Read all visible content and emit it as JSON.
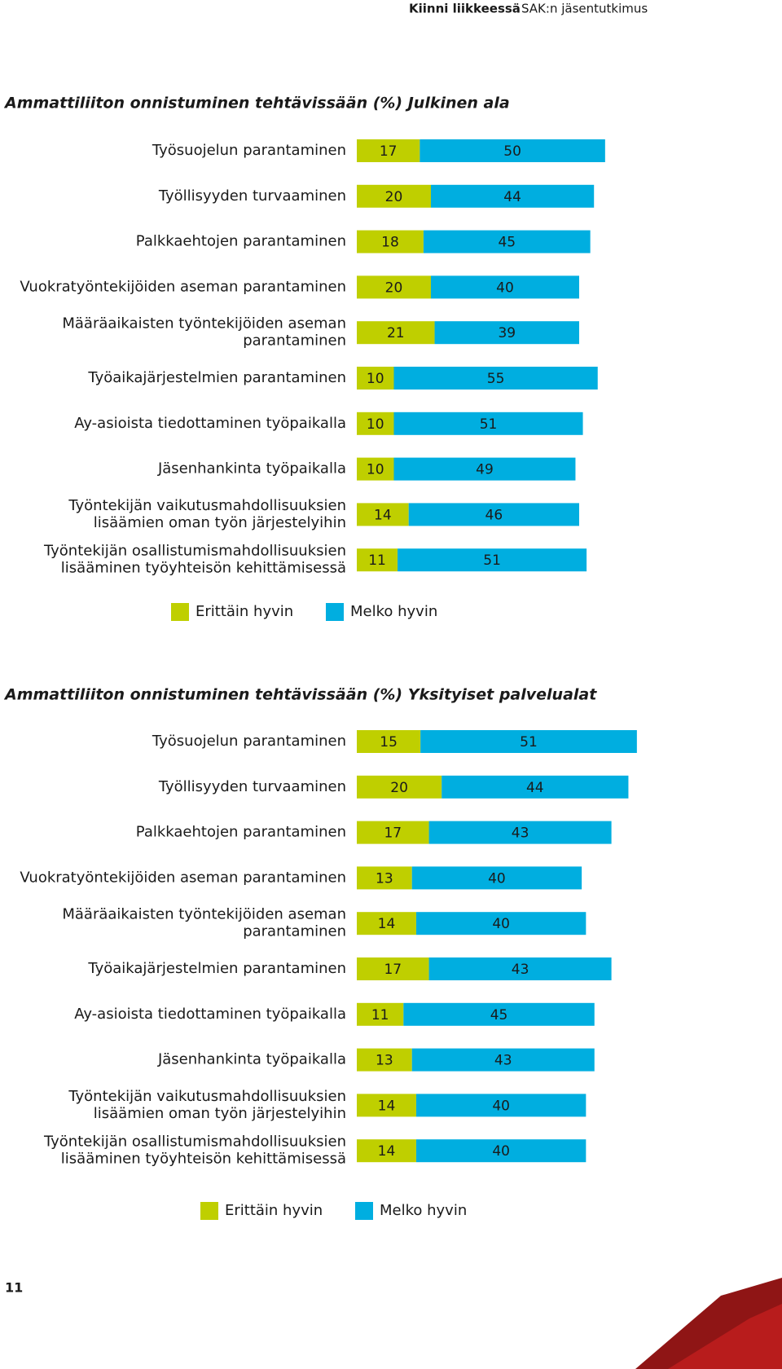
{
  "header": {
    "section": "Kiinni liikkeessä",
    "publication": "SAK:n jäsentutkimus"
  },
  "page_number": "11",
  "chart_data": [
    {
      "type": "stacked-bar",
      "title": "Ammattiliiton onnistuminen tehtävissään (%) Julkinen ala",
      "categories": [
        [
          "Työsuojelun parantaminen"
        ],
        [
          "Työllisyyden turvaaminen"
        ],
        [
          "Palkkaehtojen parantaminen"
        ],
        [
          "Vuokratyöntekijöiden aseman parantaminen"
        ],
        [
          "Määräaikaisten työntekijöiden aseman",
          "parantaminen"
        ],
        [
          "Työaikajärjestelmien parantaminen"
        ],
        [
          "Ay-asioista tiedottaminen työpaikalla"
        ],
        [
          "Jäsenhankinta työpaikalla"
        ],
        [
          "Työntekijän vaikutusmahdollisuuksien",
          "lisäämien oman työn järjestelyihin"
        ],
        [
          "Työntekijän osallistumismahdollisuuksien",
          "lisääminen työyhteisön kehittämisessä"
        ]
      ],
      "series": [
        {
          "name": "Erittäin hyvin",
          "color": "#bfcf00",
          "values": [
            17,
            20,
            18,
            20,
            21,
            10,
            10,
            10,
            14,
            11
          ]
        },
        {
          "name": "Melko hyvin",
          "color": "#00aee0",
          "values": [
            50,
            44,
            45,
            40,
            39,
            55,
            51,
            49,
            46,
            51
          ]
        }
      ]
    },
    {
      "type": "stacked-bar",
      "title": "Ammattiliiton onnistuminen tehtävissään (%) Yksityiset palvelualat",
      "categories": [
        [
          "Työsuojelun parantaminen"
        ],
        [
          "Työllisyyden turvaaminen"
        ],
        [
          "Palkkaehtojen parantaminen"
        ],
        [
          "Vuokratyöntekijöiden aseman parantaminen"
        ],
        [
          "Määräaikaisten työntekijöiden aseman",
          "parantaminen"
        ],
        [
          "Työaikajärjestelmien parantaminen"
        ],
        [
          "Ay-asioista tiedottaminen työpaikalla"
        ],
        [
          "Jäsenhankinta työpaikalla"
        ],
        [
          "Työntekijän vaikutusmahdollisuuksien",
          "lisäämien oman työn järjestelyihin"
        ],
        [
          "Työntekijän osallistumismahdollisuuksien",
          "lisääminen työyhteisön kehittämisessä"
        ]
      ],
      "series": [
        {
          "name": "Erittäin hyvin",
          "color": "#bfcf00",
          "values": [
            15,
            20,
            17,
            13,
            14,
            17,
            11,
            13,
            14,
            14
          ]
        },
        {
          "name": "Melko hyvin",
          "color": "#00aee0",
          "values": [
            51,
            44,
            43,
            40,
            40,
            43,
            45,
            43,
            40,
            40
          ]
        }
      ]
    }
  ]
}
